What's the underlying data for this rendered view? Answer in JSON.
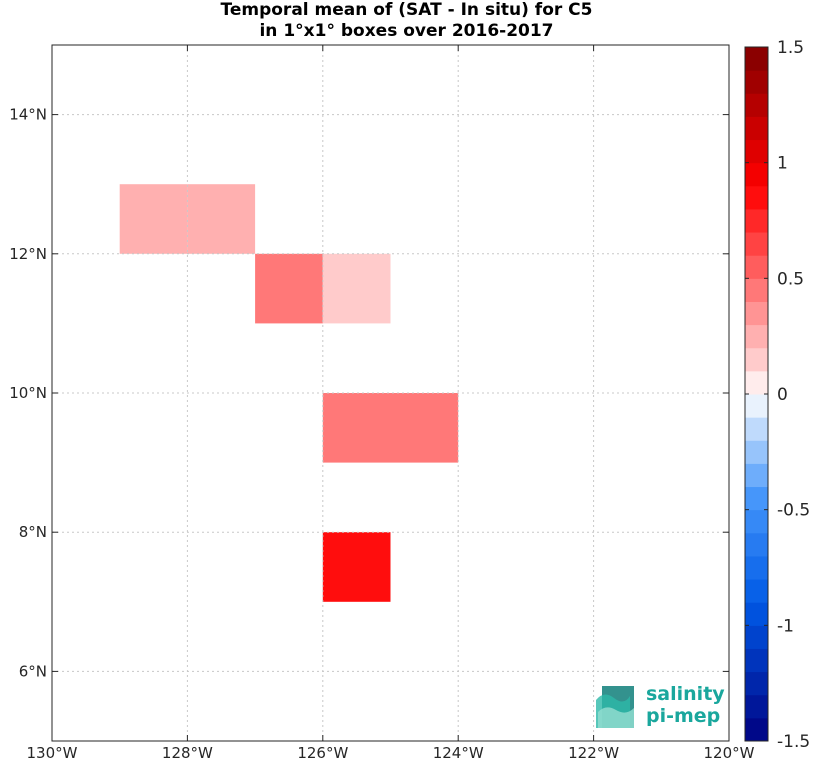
{
  "chart_data": {
    "type": "heatmap",
    "title": [
      "Temporal mean of (SAT - In situ) for C5",
      "in 1°x1° boxes over 2016-2017"
    ],
    "x_axis": {
      "range": [
        -130,
        -120
      ],
      "ticks": [
        -130,
        -128,
        -126,
        -124,
        -122,
        -120
      ],
      "tick_labels": [
        "130°W",
        "128°W",
        "126°W",
        "124°W",
        "122°W",
        "120°W"
      ]
    },
    "y_axis": {
      "range": [
        5,
        15
      ],
      "ticks": [
        6,
        8,
        10,
        12,
        14
      ],
      "tick_labels": [
        "6°N",
        "8°N",
        "10°N",
        "12°N",
        "14°N"
      ]
    },
    "grid": true,
    "boxes": [
      {
        "lon": -129,
        "lat": 12,
        "value": 0.25
      },
      {
        "lon": -128,
        "lat": 12,
        "value": 0.25
      },
      {
        "lon": -127,
        "lat": 11,
        "value": 0.4
      },
      {
        "lon": -126,
        "lat": 11,
        "value": 0.12
      },
      {
        "lon": -126,
        "lat": 9,
        "value": 0.4
      },
      {
        "lon": -125,
        "lat": 9,
        "value": 0.4
      },
      {
        "lon": -126,
        "lat": 7,
        "value": 0.85
      }
    ],
    "colorbar": {
      "range": [
        -1.5,
        1.5
      ],
      "ticks": [
        -1.5,
        -1,
        -0.5,
        0,
        0.5,
        1,
        1.5
      ],
      "tick_labels": [
        "-1.5",
        "-1",
        "-0.5",
        "0",
        "0.5",
        "1",
        "1.5"
      ],
      "levels": 30,
      "colormap": "blue-white-red"
    }
  },
  "logo": {
    "line1": "salinity",
    "line2": "pi-mep",
    "color": "#1aa79d"
  }
}
